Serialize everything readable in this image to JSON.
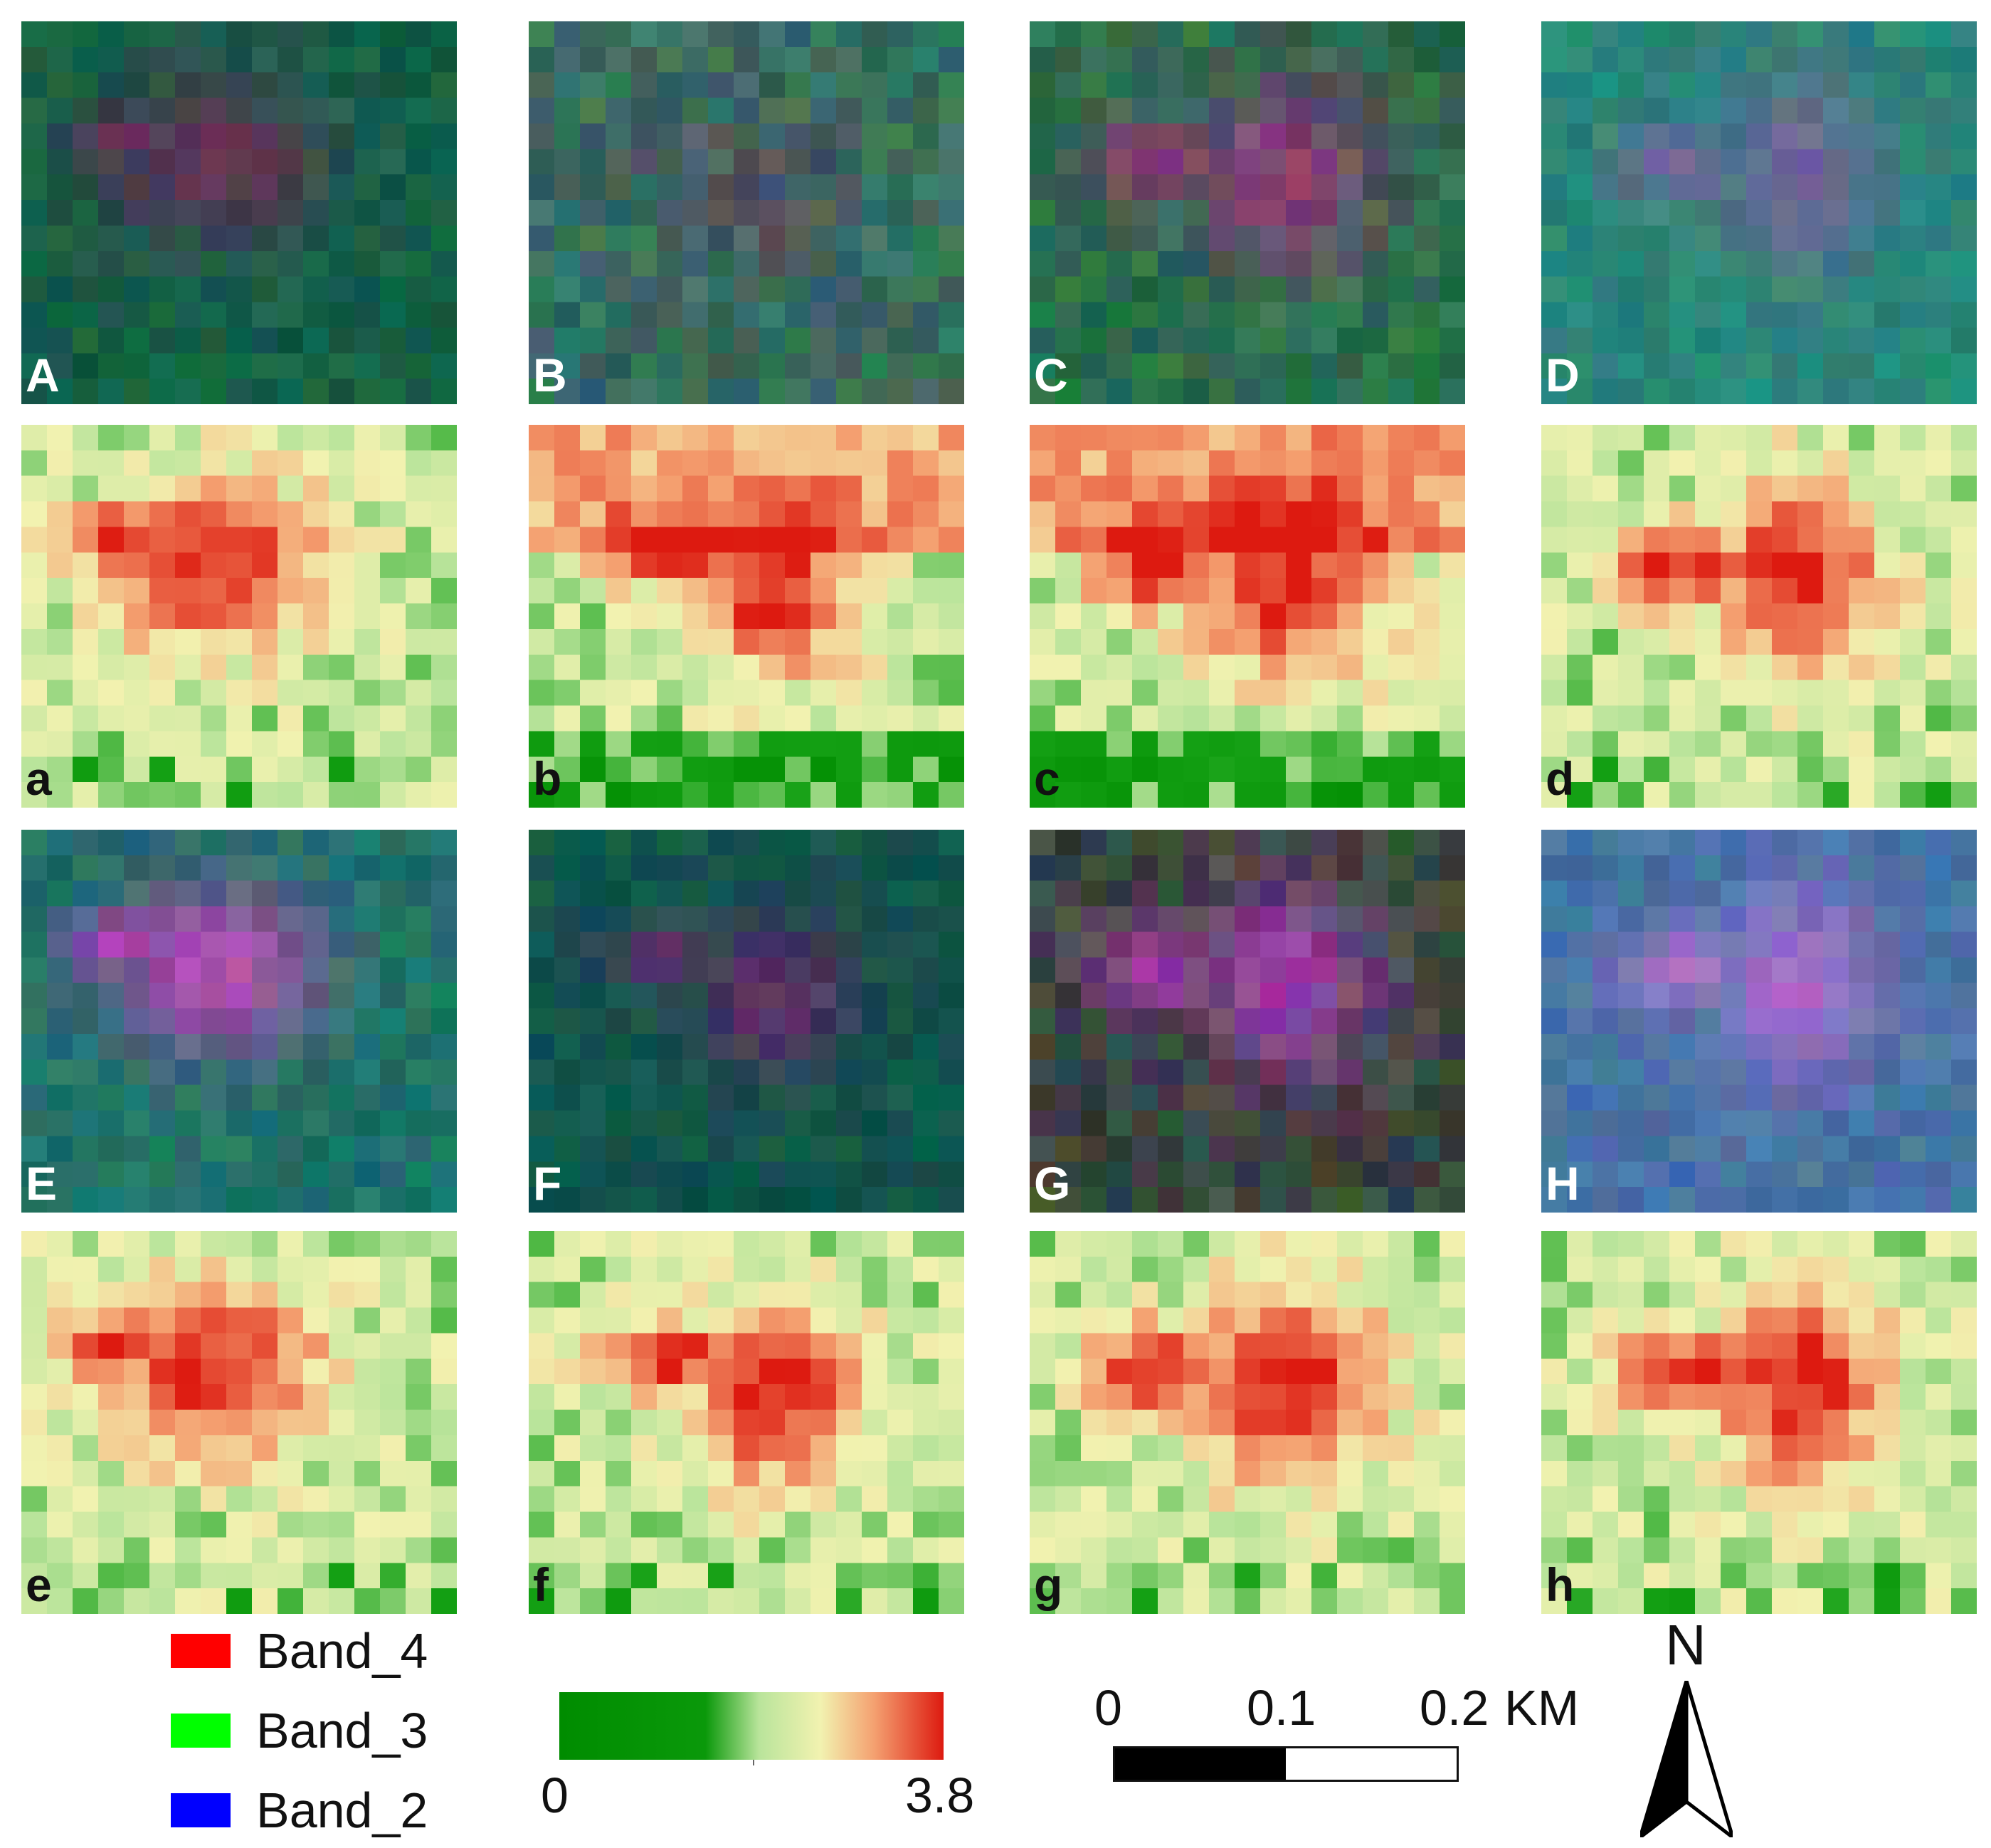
{
  "figure": {
    "panels": [
      {
        "row": 0,
        "col": 0,
        "label": "A",
        "kind": "rgb",
        "tint": "green-purple"
      },
      {
        "row": 0,
        "col": 1,
        "label": "B",
        "kind": "rgb",
        "tint": "grey-green"
      },
      {
        "row": 0,
        "col": 2,
        "label": "C",
        "kind": "rgb",
        "tint": "green-magenta"
      },
      {
        "row": 0,
        "col": 3,
        "label": "D",
        "kind": "rgb",
        "tint": "teal-lilac"
      },
      {
        "row": 1,
        "col": 0,
        "label": "a",
        "kind": "index"
      },
      {
        "row": 1,
        "col": 1,
        "label": "b",
        "kind": "index"
      },
      {
        "row": 1,
        "col": 2,
        "label": "c",
        "kind": "index"
      },
      {
        "row": 1,
        "col": 3,
        "label": "d",
        "kind": "index"
      },
      {
        "row": 2,
        "col": 0,
        "label": "E",
        "kind": "rgb",
        "tint": "teal-magenta"
      },
      {
        "row": 2,
        "col": 1,
        "label": "F",
        "kind": "rgb",
        "tint": "dark-teal-purple"
      },
      {
        "row": 2,
        "col": 2,
        "label": "G",
        "kind": "rgb",
        "tint": "dark-magenta"
      },
      {
        "row": 2,
        "col": 3,
        "label": "H",
        "kind": "rgb",
        "tint": "blue-violet"
      },
      {
        "row": 3,
        "col": 0,
        "label": "e",
        "kind": "index"
      },
      {
        "row": 3,
        "col": 1,
        "label": "f",
        "kind": "index"
      },
      {
        "row": 3,
        "col": 2,
        "label": "g",
        "kind": "index"
      },
      {
        "row": 3,
        "col": 3,
        "label": "h",
        "kind": "index"
      }
    ]
  },
  "legend": {
    "bands": [
      {
        "label": "Band_4",
        "color": "#ff0000"
      },
      {
        "label": "Band_3",
        "color": "#00ff00"
      },
      {
        "label": "Band_2",
        "color": "#0000ff"
      }
    ]
  },
  "colorbar": {
    "min_label": "0",
    "max_label": "3.8",
    "min": 0,
    "max": 3.8,
    "stops": [
      "#008c00",
      "#0a990a",
      "#b9e49b",
      "#f2f2b0",
      "#f4a070",
      "#dd1a10"
    ]
  },
  "scale_bar": {
    "ticks": [
      "0",
      "0.1",
      "0.2"
    ],
    "unit": "KM"
  },
  "north_arrow": {
    "label": "N"
  }
}
